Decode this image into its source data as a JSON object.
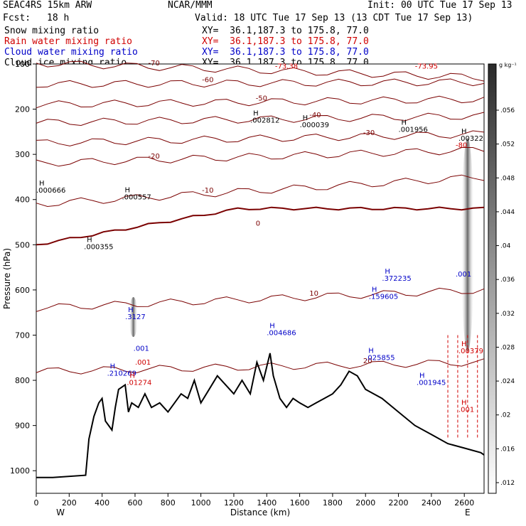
{
  "header": {
    "model": "SEAC4RS 15km ARW",
    "org": "NCAR/MMM",
    "init": "Init: 00 UTC Tue 17 Sep 13",
    "fcst_label": "Fcst:",
    "fcst_value": "18 h",
    "valid": "Valid: 18 UTC Tue 17 Sep 13 (13 CDT Tue 17 Sep 13)",
    "fields": [
      {
        "name": "Snow mixing ratio",
        "xy": "XY=  36.1,187.3 to 175.8, 77.0",
        "color": "#000000"
      },
      {
        "name": "Rain water mixing ratio",
        "xy": "XY=  36.1,187.3 to 175.8, 77.0",
        "color": "#d00000"
      },
      {
        "name": "Cloud water mixing ratio",
        "xy": "XY=  36.1,187.3 to 175.8, 77.0",
        "color": "#0000c8"
      },
      {
        "name": "Cloud ice mixing ratio",
        "xy": "XY=  36.1,187.3 to 175.8, 77.0",
        "color": "#000000"
      }
    ]
  },
  "chart_data": {
    "type": "cross-section",
    "xlabel": "Distance (km)",
    "ylabel": "Pressure (hPa)",
    "xlim": [
      0,
      2720
    ],
    "ylim": [
      1050,
      100
    ],
    "x_ticks": [
      0,
      200,
      400,
      600,
      800,
      1000,
      1200,
      1400,
      1600,
      1800,
      2000,
      2200,
      2400,
      2600
    ],
    "y_ticks": [
      100,
      200,
      300,
      400,
      500,
      600,
      700,
      800,
      900,
      1000
    ],
    "endpoint_labels": {
      "left": "W",
      "right": "E"
    },
    "colorbar": {
      "unit": "g kg⁻¹",
      "levels": [
        0.056,
        0.052,
        0.048,
        0.044,
        0.04,
        0.036,
        0.032,
        0.028,
        0.024,
        0.02,
        0.016,
        0.012
      ]
    },
    "temperature_contours": [
      {
        "label": "-70",
        "value": -70,
        "y_left": 98,
        "y_right": 130
      },
      {
        "label": "-60",
        "value": -60,
        "y_left": 145,
        "y_right": 140
      },
      {
        "label": "-50",
        "value": -50,
        "y_left": 190,
        "y_right": 178
      },
      {
        "label": "-40",
        "value": -40,
        "y_left": 230,
        "y_right": 215
      },
      {
        "label": "-30",
        "value": -30,
        "y_left": 275,
        "y_right": 255
      },
      {
        "label": "-20",
        "value": -20,
        "y_left": 320,
        "y_right": 290
      },
      {
        "label": "-10",
        "value": -10,
        "y_left": 410,
        "y_right": 350
      },
      {
        "label": "0",
        "value": 0,
        "y_left": 500,
        "y_right": 420
      },
      {
        "label": "10",
        "value": 10,
        "y_left": 640,
        "y_right": 600
      },
      {
        "label": "20",
        "value": 20,
        "y_left": 780,
        "y_right": 760
      }
    ],
    "terrain": {
      "x": [
        0,
        100,
        300,
        320,
        350,
        380,
        400,
        420,
        460,
        480,
        500,
        540,
        560,
        580,
        620,
        660,
        700,
        750,
        800,
        840,
        880,
        920,
        960,
        1000,
        1050,
        1100,
        1150,
        1200,
        1250,
        1300,
        1340,
        1380,
        1420,
        1440,
        1480,
        1520,
        1560,
        1600,
        1650,
        1700,
        1750,
        1800,
        1850,
        1900,
        1950,
        2000,
        2050,
        2100,
        2200,
        2300,
        2400,
        2500,
        2600,
        2700,
        2720
      ],
      "p": [
        1015,
        1015,
        1010,
        930,
        880,
        850,
        840,
        890,
        910,
        860,
        820,
        810,
        870,
        850,
        860,
        830,
        860,
        850,
        870,
        850,
        830,
        840,
        800,
        850,
        820,
        790,
        810,
        830,
        800,
        830,
        760,
        800,
        740,
        790,
        840,
        860,
        840,
        850,
        860,
        850,
        840,
        830,
        810,
        780,
        790,
        820,
        830,
        840,
        870,
        900,
        920,
        940,
        950,
        960,
        965
      ]
    },
    "cloud_water_maxima": [
      {
        "x": 540,
        "p": 665,
        "label": ".3127"
      },
      {
        "x": 430,
        "p": 790,
        "label": ".210269"
      },
      {
        "x": 2100,
        "p": 580,
        "label": ".372235"
      },
      {
        "x": 2020,
        "p": 620,
        "label": ".159605"
      },
      {
        "x": 1400,
        "p": 700,
        "label": ".004686"
      },
      {
        "x": 2000,
        "p": 755,
        "label": ".025855"
      },
      {
        "x": 2310,
        "p": 810,
        "label": ".001945"
      }
    ],
    "snow_maxima": [
      {
        "x": 1300,
        "p": 230,
        "label": ".002812"
      },
      {
        "x": 1600,
        "p": 240,
        "label": ".000039"
      },
      {
        "x": 2200,
        "p": 250,
        "label": ".001956"
      },
      {
        "x": 2600,
        "p": 270,
        "label": ".00322"
      },
      {
        "x": 0,
        "p": 385,
        "label": ".000666"
      },
      {
        "x": 520,
        "p": 400,
        "label": ".000557"
      },
      {
        "x": 290,
        "p": 510,
        "label": ".000355"
      }
    ],
    "rain_maxima": [
      {
        "x": 550,
        "p": 810,
        "label": ".01274"
      },
      {
        "x": 2630,
        "p": 740,
        "label": ".00379"
      },
      {
        "x": 2570,
        "p": 870,
        "label": ".001"
      }
    ],
    "misc_labels": [
      {
        "x": 1450,
        "p": 110,
        "label": "-73.38",
        "color": "#d00000"
      },
      {
        "x": 2300,
        "p": 110,
        "label": "-73.95",
        "color": "#d00000"
      },
      {
        "x": 590,
        "p": 735,
        "label": ".001",
        "color": "#0000c8"
      },
      {
        "x": 600,
        "p": 765,
        "label": ".001",
        "color": "#d00000"
      },
      {
        "x": 2650,
        "p": 570,
        "label": ".001",
        "color": "#0000c8"
      },
      {
        "x": 2620,
        "p": 285,
        "label": "-80",
        "color": "#d00000"
      }
    ]
  }
}
